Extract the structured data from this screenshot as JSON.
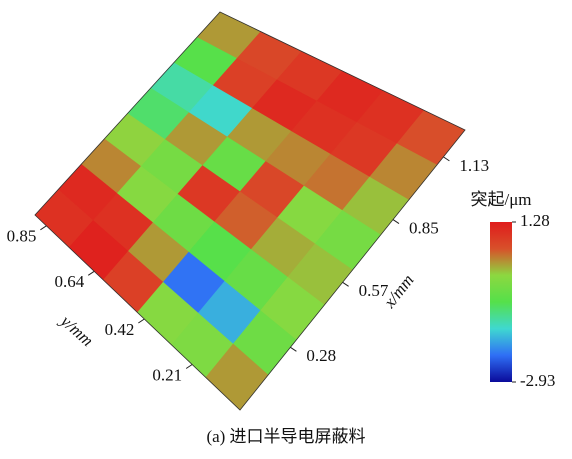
{
  "chart_data": {
    "type": "surface3d",
    "caption": "(a) 进口半导电屏蔽料",
    "xlabel": "x/mm",
    "ylabel": "y/mm",
    "zlabel": "突起/μm",
    "xlim": [
      0,
      1.25
    ],
    "xticks": [
      0.28,
      0.57,
      0.85,
      1.13
    ],
    "ylim": [
      0,
      0.9
    ],
    "yticks": [
      0.21,
      0.42,
      0.64,
      0.85
    ],
    "zlim": [
      -2.93,
      1.28
    ],
    "zticks": [
      1.28,
      -2.93
    ],
    "colors": [
      "#0a0a9a",
      "#2f6ff5",
      "#3fd8d0",
      "#55e04a",
      "#8cd840",
      "#d8502a",
      "#e01c1c"
    ],
    "z": [
      [
        0.2,
        -0.5,
        -0.2,
        0.0,
        -0.4,
        0.0,
        0.3,
        0.6
      ],
      [
        -0.3,
        -1.8,
        -0.6,
        0.1,
        -0.2,
        0.4,
        0.9,
        1.0
      ],
      [
        -0.2,
        -2.2,
        -0.8,
        0.5,
        0.7,
        0.3,
        1.0,
        1.1
      ],
      [
        0.8,
        0.2,
        -0.5,
        0.9,
        -0.6,
        0.2,
        1.1,
        0.9
      ],
      [
        1.2,
        1.0,
        -0.2,
        -0.4,
        0.2,
        -1.5,
        0.8,
        0.7
      ],
      [
        1.0,
        1.1,
        0.3,
        -0.1,
        -1.0,
        -1.3,
        -0.8,
        0.2
      ]
    ]
  }
}
